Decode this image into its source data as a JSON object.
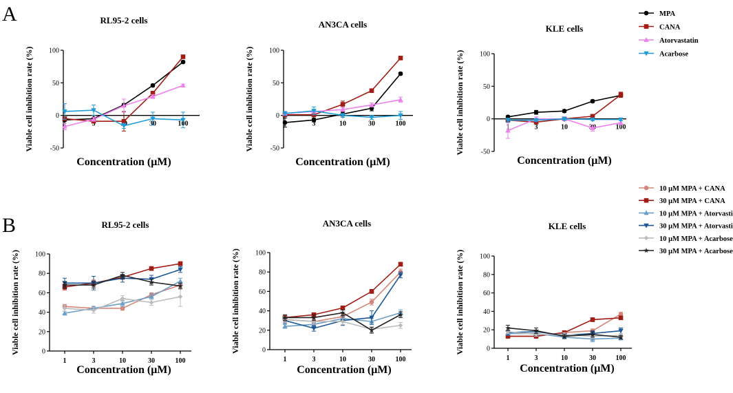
{
  "panel_labels": {
    "top": "A",
    "bottom": "B"
  },
  "legend_a": [
    {
      "label": "MPA",
      "color": "#000000",
      "marker": "circle",
      "dashed": false
    },
    {
      "label": "CANA",
      "color": "#a01c14",
      "marker": "square",
      "dashed": false
    },
    {
      "label": "Atorvastatin",
      "color": "#ee80ee",
      "marker": "triangle-up",
      "dashed": false
    },
    {
      "label": "Acarbose",
      "color": "#1f9bd8",
      "marker": "triangle-down",
      "dashed": false
    }
  ],
  "legend_b": [
    {
      "label": "10 μM MPA + CANA",
      "color": "#d6857a",
      "marker": "circle",
      "dashed": false
    },
    {
      "label": "30 μM MPA + CANA",
      "color": "#a01c14",
      "marker": "square",
      "dashed": false
    },
    {
      "label": "10 μM MPA + Atorvastin",
      "color": "#6a9ec8",
      "marker": "triangle-up",
      "dashed": false
    },
    {
      "label": "30 μM MPA + Atorvastin",
      "color": "#1c5795",
      "marker": "triangle-down",
      "dashed": false
    },
    {
      "label": "10 μM MPA + Acarbose",
      "color": "#bbbbbb",
      "marker": "diamond",
      "dashed": false
    },
    {
      "label": "30 μM MPA + Acarbose",
      "color": "#222222",
      "marker": "star",
      "dashed": false
    }
  ],
  "chart_data": [
    {
      "panel": "A",
      "type": "line",
      "title": "RL95-2 cells",
      "xlabel": "Concentration (μM)",
      "ylabel": "Viable cell inhibition rate (%)",
      "x": [
        "1",
        "3",
        "10",
        "30",
        "100"
      ],
      "ylim": [
        -50,
        100
      ],
      "yticks": [
        -50,
        0,
        50,
        100
      ],
      "series": [
        {
          "name": "MPA",
          "values": [
            -7,
            -5,
            16,
            46,
            82
          ],
          "err": [
            2,
            2,
            2,
            2,
            2
          ]
        },
        {
          "name": "CANA",
          "values": [
            -5,
            -9,
            -9,
            34,
            90
          ],
          "err": [
            2,
            2,
            15,
            3,
            2
          ]
        },
        {
          "name": "Atorvastatin",
          "values": [
            -17,
            -6,
            15,
            29,
            46
          ],
          "err": [
            5,
            3,
            10,
            3,
            2
          ]
        },
        {
          "name": "Acarbose",
          "values": [
            6,
            8,
            -16,
            -5,
            -7
          ],
          "err": [
            12,
            8,
            4,
            10,
            12
          ]
        }
      ]
    },
    {
      "panel": "A",
      "type": "line",
      "title": "AN3CA cells",
      "xlabel": "Concentration (μM)",
      "ylabel": "Viable cell inhibition rate (%)",
      "x": [
        "1",
        "3",
        "10",
        "30",
        "100"
      ],
      "ylim": [
        -50,
        100
      ],
      "yticks": [
        -50,
        0,
        50,
        100
      ],
      "series": [
        {
          "name": "MPA",
          "values": [
            -11,
            -7,
            2,
            11,
            64
          ],
          "err": [
            7,
            3,
            3,
            4,
            2
          ]
        },
        {
          "name": "CANA",
          "values": [
            1,
            1,
            17,
            38,
            88
          ],
          "err": [
            3,
            3,
            5,
            2,
            2
          ]
        },
        {
          "name": "Atorvastatin",
          "values": [
            3,
            6,
            9,
            16,
            24
          ],
          "err": [
            3,
            3,
            3,
            3,
            4
          ]
        },
        {
          "name": "Acarbose",
          "values": [
            3,
            7,
            0,
            -3,
            0
          ],
          "err": [
            3,
            6,
            3,
            3,
            6
          ]
        }
      ]
    },
    {
      "panel": "A",
      "type": "line",
      "title": "KLE cells",
      "xlabel": "Concentration (μM)",
      "ylabel": "Viable cell inhibition rate (%)",
      "x": [
        "1",
        "3",
        "10",
        "30",
        "100"
      ],
      "ylim": [
        -50,
        100
      ],
      "yticks": [
        -50,
        0,
        50,
        100
      ],
      "series": [
        {
          "name": "MPA",
          "values": [
            3,
            10,
            12,
            27,
            36
          ],
          "err": [
            2,
            3,
            2,
            2,
            3
          ]
        },
        {
          "name": "CANA",
          "values": [
            -2,
            -5,
            0,
            4,
            37
          ],
          "err": [
            2,
            2,
            2,
            2,
            4
          ]
        },
        {
          "name": "Atorvastatin",
          "values": [
            -18,
            0,
            0,
            -14,
            -6
          ],
          "err": [
            12,
            3,
            3,
            5,
            3
          ]
        },
        {
          "name": "Acarbose",
          "values": [
            -2,
            -2,
            0,
            -1,
            -1
          ],
          "err": [
            3,
            2,
            2,
            2,
            2
          ]
        }
      ]
    },
    {
      "panel": "B",
      "type": "line",
      "title": "RL95-2 cells",
      "xlabel": "Concentration (μM)",
      "ylabel": "Viable cell inhibition rate (%)",
      "x": [
        "1",
        "3",
        "10",
        "30",
        "100"
      ],
      "ylim": [
        0,
        100
      ],
      "yticks": [
        0,
        20,
        40,
        60,
        80,
        100
      ],
      "series": [
        {
          "name": "10 μM MPA + CANA",
          "values": [
            46,
            44,
            44,
            58,
            68
          ],
          "err": [
            2,
            2,
            2,
            2,
            3
          ]
        },
        {
          "name": "30 μM MPA + CANA",
          "values": [
            66,
            70,
            76,
            85,
            90
          ],
          "err": [
            3,
            3,
            2,
            2,
            2
          ]
        },
        {
          "name": "10 μM MPA + Atorvastin",
          "values": [
            39,
            44,
            49,
            56,
            72
          ],
          "err": [
            2,
            2,
            3,
            3,
            3
          ]
        },
        {
          "name": "30 μM MPA + Atorvastin",
          "values": [
            70,
            70,
            75,
            74,
            84
          ],
          "err": [
            5,
            7,
            4,
            4,
            3
          ]
        },
        {
          "name": "10 μM MPA + Acarbose",
          "values": [
            44,
            42,
            54,
            50,
            56
          ],
          "err": [
            3,
            3,
            3,
            3,
            10
          ]
        },
        {
          "name": "30 μM MPA + Acarbose",
          "values": [
            68,
            68,
            78,
            71,
            67
          ],
          "err": [
            3,
            3,
            3,
            3,
            3
          ]
        }
      ]
    },
    {
      "panel": "B",
      "type": "line",
      "title": "AN3CA cells",
      "xlabel": "Concentration (μM)",
      "ylabel": "Viable cell inhibition rate (%)",
      "x": [
        "1",
        "3",
        "10",
        "30",
        "100"
      ],
      "ylim": [
        0,
        100
      ],
      "yticks": [
        0,
        20,
        40,
        60,
        80,
        100
      ],
      "series": [
        {
          "name": "10 μM MPA + CANA",
          "values": [
            31,
            29,
            34,
            49,
            80
          ],
          "err": [
            2,
            2,
            2,
            3,
            3
          ]
        },
        {
          "name": "30 μM MPA + CANA",
          "values": [
            33,
            36,
            43,
            60,
            88
          ],
          "err": [
            2,
            2,
            2,
            2,
            2
          ]
        },
        {
          "name": "10 μM MPA + Atorvastin",
          "values": [
            24,
            26,
            32,
            29,
            38
          ],
          "err": [
            2,
            2,
            3,
            3,
            3
          ]
        },
        {
          "name": "30 μM MPA + Atorvastin",
          "values": [
            30,
            22,
            30,
            33,
            77
          ],
          "err": [
            3,
            3,
            5,
            7,
            3
          ]
        },
        {
          "name": "10 μM MPA + Acarbose",
          "values": [
            31,
            29,
            29,
            21,
            25
          ],
          "err": [
            3,
            3,
            3,
            3,
            3
          ]
        },
        {
          "name": "30 μM MPA + Acarbose",
          "values": [
            33,
            33,
            38,
            20,
            36
          ],
          "err": [
            3,
            3,
            3,
            3,
            3
          ]
        }
      ]
    },
    {
      "panel": "B",
      "type": "line",
      "title": "KLE cells",
      "xlabel": "Concentration (μM)",
      "ylabel": "Viable cell inhibition rate (%)",
      "x": [
        "1",
        "3",
        "10",
        "30",
        "100"
      ],
      "ylim": [
        0,
        100
      ],
      "yticks": [
        0,
        20,
        40,
        60,
        80,
        100
      ],
      "series": [
        {
          "name": "10 μM MPA + CANA",
          "values": [
            13,
            13,
            17,
            19,
            37
          ],
          "err": [
            2,
            2,
            2,
            2,
            2
          ]
        },
        {
          "name": "30 μM MPA + CANA",
          "values": [
            13,
            13,
            17,
            31,
            33
          ],
          "err": [
            2,
            2,
            2,
            2,
            2
          ]
        },
        {
          "name": "10 μM MPA + Atorvastin",
          "values": [
            16,
            16,
            12,
            10,
            11
          ],
          "err": [
            2,
            3,
            2,
            3,
            2
          ]
        },
        {
          "name": "30 μM MPA + Atorvastin",
          "values": [
            17,
            18,
            14,
            16,
            19
          ],
          "err": [
            3,
            4,
            2,
            3,
            3
          ]
        },
        {
          "name": "10 μM MPA + Acarbose",
          "values": [
            18,
            15,
            15,
            13,
            14
          ],
          "err": [
            2,
            2,
            2,
            2,
            2
          ]
        },
        {
          "name": "30 μM MPA + Acarbose",
          "values": [
            22,
            19,
            13,
            15,
            12
          ],
          "err": [
            3,
            3,
            2,
            3,
            2
          ]
        }
      ]
    }
  ]
}
